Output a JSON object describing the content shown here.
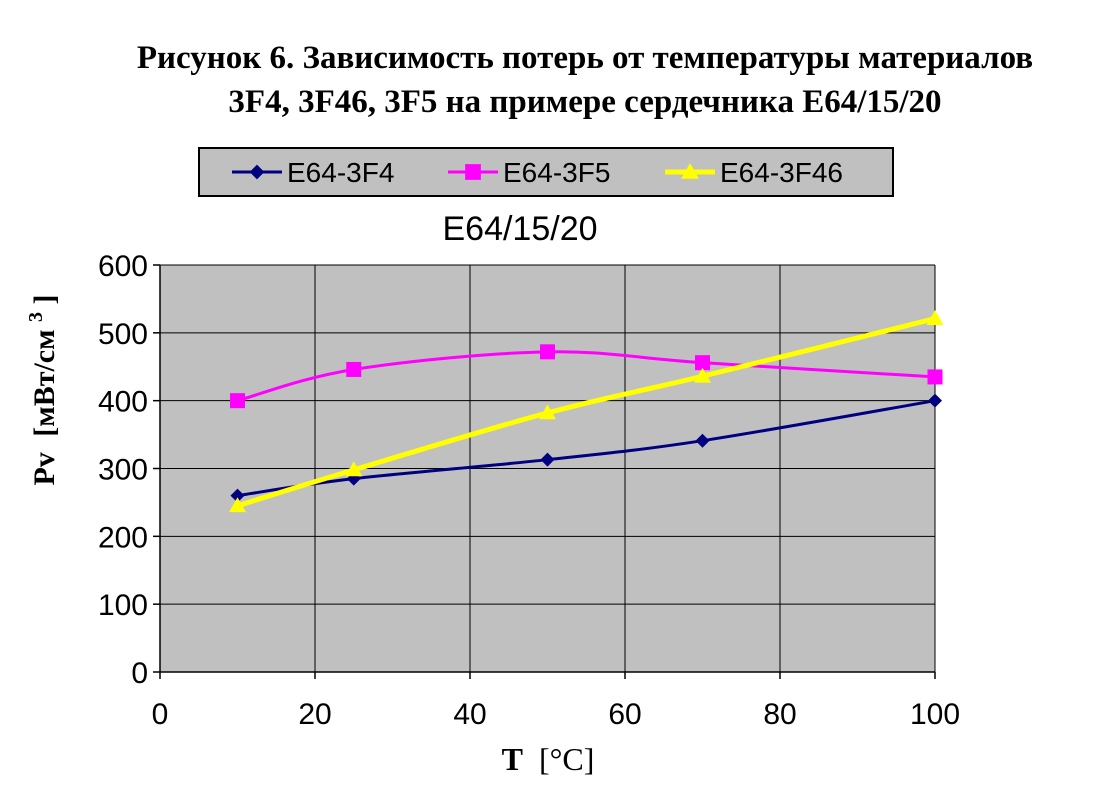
{
  "caption": {
    "line1": "Рисунок  6.  Зависимость потерь от температуры материалов",
    "line2": "3F4, 3F46, 3F5 на примере сердечника E64/15/20"
  },
  "chart_data": {
    "type": "line",
    "title": "E64/15/20",
    "xlabel_main": "T",
    "xlabel_unit": "[°C]",
    "ylabel_main": "Pv",
    "ylabel_unit": "[мВт/см",
    "ylabel_sup": "3",
    "ylabel_close": "]",
    "xlim": [
      0,
      100
    ],
    "ylim": [
      0,
      600
    ],
    "xticks": [
      0,
      20,
      40,
      60,
      80,
      100
    ],
    "yticks": [
      0,
      100,
      200,
      300,
      400,
      500,
      600
    ],
    "grid": true,
    "plot_background": "#c0c0c0",
    "legend_position": "top",
    "series": [
      {
        "name": "E64-3F4",
        "color": "#000080",
        "marker": "diamond",
        "x": [
          10,
          25,
          50,
          70,
          100
        ],
        "y": [
          260,
          285,
          313,
          341,
          400
        ]
      },
      {
        "name": "E64-3F5",
        "color": "#ff00ff",
        "marker": "square",
        "x": [
          10,
          25,
          50,
          70,
          100
        ],
        "y": [
          400,
          446,
          472,
          456,
          435
        ]
      },
      {
        "name": "E64-3F46",
        "color": "#ffff00",
        "marker": "triangle",
        "x": [
          10,
          25,
          50,
          70,
          100
        ],
        "y": [
          245,
          298,
          382,
          436,
          521
        ]
      }
    ]
  }
}
